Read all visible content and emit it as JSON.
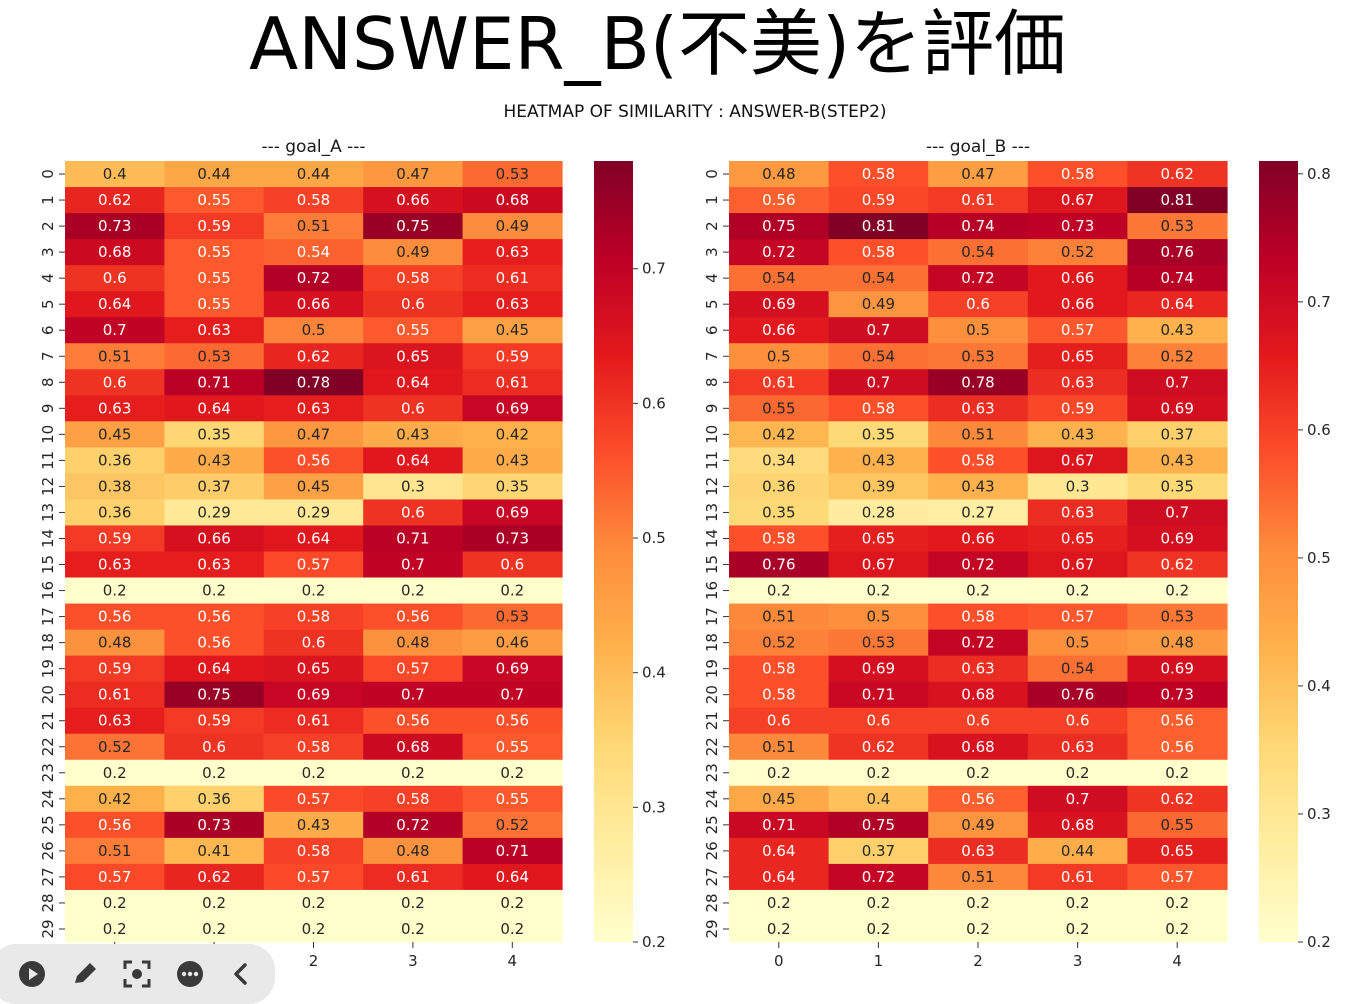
{
  "slide_title": "ANSWER_B(不美)を評価",
  "toolbar": {
    "buttons": [
      {
        "name": "play-button",
        "icon": "play-icon"
      },
      {
        "name": "pen-button",
        "icon": "pen-icon"
      },
      {
        "name": "focus-button",
        "icon": "focus-icon"
      },
      {
        "name": "more-button",
        "icon": "more-icon"
      },
      {
        "name": "back-button",
        "icon": "chevron-left-icon"
      }
    ]
  },
  "chart_data": {
    "type": "heatmap",
    "title": "HEATMAP OF SIMILARITY : ANSWER-B(STEP2)",
    "colormap": "YlOrRd",
    "rows": [
      "0",
      "1",
      "2",
      "3",
      "4",
      "5",
      "6",
      "7",
      "8",
      "9",
      "10",
      "11",
      "12",
      "13",
      "14",
      "15",
      "16",
      "17",
      "18",
      "19",
      "20",
      "21",
      "22",
      "23",
      "24",
      "25",
      "26",
      "27",
      "28",
      "29"
    ],
    "columns": [
      "0",
      "1",
      "2",
      "3",
      "4"
    ],
    "panels": [
      {
        "title": "--- goal_A ---",
        "vmin": 0.2,
        "vmax": 0.78,
        "colorbar_ticks": [
          "0.2",
          "0.3",
          "0.4",
          "0.5",
          "0.6",
          "0.7"
        ],
        "values": [
          [
            0.4,
            0.44,
            0.44,
            0.47,
            0.53
          ],
          [
            0.62,
            0.55,
            0.58,
            0.66,
            0.68
          ],
          [
            0.73,
            0.59,
            0.51,
            0.75,
            0.49
          ],
          [
            0.68,
            0.55,
            0.54,
            0.49,
            0.63
          ],
          [
            0.6,
            0.55,
            0.72,
            0.58,
            0.61
          ],
          [
            0.64,
            0.55,
            0.66,
            0.6,
            0.63
          ],
          [
            0.7,
            0.63,
            0.5,
            0.55,
            0.45
          ],
          [
            0.51,
            0.53,
            0.62,
            0.65,
            0.59
          ],
          [
            0.6,
            0.71,
            0.78,
            0.64,
            0.61
          ],
          [
            0.63,
            0.64,
            0.63,
            0.6,
            0.69
          ],
          [
            0.45,
            0.35,
            0.47,
            0.43,
            0.42
          ],
          [
            0.36,
            0.43,
            0.56,
            0.64,
            0.43
          ],
          [
            0.38,
            0.37,
            0.45,
            0.3,
            0.35
          ],
          [
            0.36,
            0.29,
            0.29,
            0.6,
            0.69
          ],
          [
            0.59,
            0.66,
            0.64,
            0.71,
            0.73
          ],
          [
            0.63,
            0.63,
            0.57,
            0.7,
            0.6
          ],
          [
            0.2,
            0.2,
            0.2,
            0.2,
            0.2
          ],
          [
            0.56,
            0.56,
            0.58,
            0.56,
            0.53
          ],
          [
            0.48,
            0.56,
            0.6,
            0.48,
            0.46
          ],
          [
            0.59,
            0.64,
            0.65,
            0.57,
            0.69
          ],
          [
            0.61,
            0.75,
            0.69,
            0.7,
            0.7
          ],
          [
            0.63,
            0.59,
            0.61,
            0.56,
            0.56
          ],
          [
            0.52,
            0.6,
            0.58,
            0.68,
            0.55
          ],
          [
            0.2,
            0.2,
            0.2,
            0.2,
            0.2
          ],
          [
            0.42,
            0.36,
            0.57,
            0.58,
            0.55
          ],
          [
            0.56,
            0.73,
            0.43,
            0.72,
            0.52
          ],
          [
            0.51,
            0.41,
            0.58,
            0.48,
            0.71
          ],
          [
            0.57,
            0.62,
            0.57,
            0.61,
            0.64
          ],
          [
            0.2,
            0.2,
            0.2,
            0.2,
            0.2
          ],
          [
            0.2,
            0.2,
            0.2,
            0.2,
            0.2
          ]
        ]
      },
      {
        "title": "--- goal_B ---",
        "vmin": 0.2,
        "vmax": 0.81,
        "colorbar_ticks": [
          "0.2",
          "0.3",
          "0.4",
          "0.5",
          "0.6",
          "0.7",
          "0.8"
        ],
        "values": [
          [
            0.48,
            0.58,
            0.47,
            0.58,
            0.62
          ],
          [
            0.56,
            0.59,
            0.61,
            0.67,
            0.81
          ],
          [
            0.75,
            0.81,
            0.74,
            0.73,
            0.53
          ],
          [
            0.72,
            0.58,
            0.54,
            0.52,
            0.76
          ],
          [
            0.54,
            0.54,
            0.72,
            0.66,
            0.74
          ],
          [
            0.69,
            0.49,
            0.6,
            0.66,
            0.64
          ],
          [
            0.66,
            0.7,
            0.5,
            0.57,
            0.43
          ],
          [
            0.5,
            0.54,
            0.53,
            0.65,
            0.52
          ],
          [
            0.61,
            0.7,
            0.78,
            0.63,
            0.7
          ],
          [
            0.55,
            0.58,
            0.63,
            0.59,
            0.69
          ],
          [
            0.42,
            0.35,
            0.51,
            0.43,
            0.37
          ],
          [
            0.34,
            0.43,
            0.58,
            0.67,
            0.43
          ],
          [
            0.36,
            0.39,
            0.43,
            0.3,
            0.35
          ],
          [
            0.35,
            0.28,
            0.27,
            0.63,
            0.7
          ],
          [
            0.58,
            0.65,
            0.66,
            0.65,
            0.69
          ],
          [
            0.76,
            0.67,
            0.72,
            0.67,
            0.62
          ],
          [
            0.2,
            0.2,
            0.2,
            0.2,
            0.2
          ],
          [
            0.51,
            0.5,
            0.58,
            0.57,
            0.53
          ],
          [
            0.52,
            0.53,
            0.72,
            0.5,
            0.48
          ],
          [
            0.58,
            0.69,
            0.63,
            0.54,
            0.69
          ],
          [
            0.58,
            0.71,
            0.68,
            0.76,
            0.73
          ],
          [
            0.6,
            0.6,
            0.6,
            0.6,
            0.56
          ],
          [
            0.51,
            0.62,
            0.68,
            0.63,
            0.56
          ],
          [
            0.2,
            0.2,
            0.2,
            0.2,
            0.2
          ],
          [
            0.45,
            0.4,
            0.56,
            0.7,
            0.62
          ],
          [
            0.71,
            0.75,
            0.49,
            0.68,
            0.55
          ],
          [
            0.64,
            0.37,
            0.63,
            0.44,
            0.65
          ],
          [
            0.64,
            0.72,
            0.51,
            0.61,
            0.57
          ],
          [
            0.2,
            0.2,
            0.2,
            0.2,
            0.2
          ],
          [
            0.2,
            0.2,
            0.2,
            0.2,
            0.2
          ]
        ]
      }
    ]
  }
}
